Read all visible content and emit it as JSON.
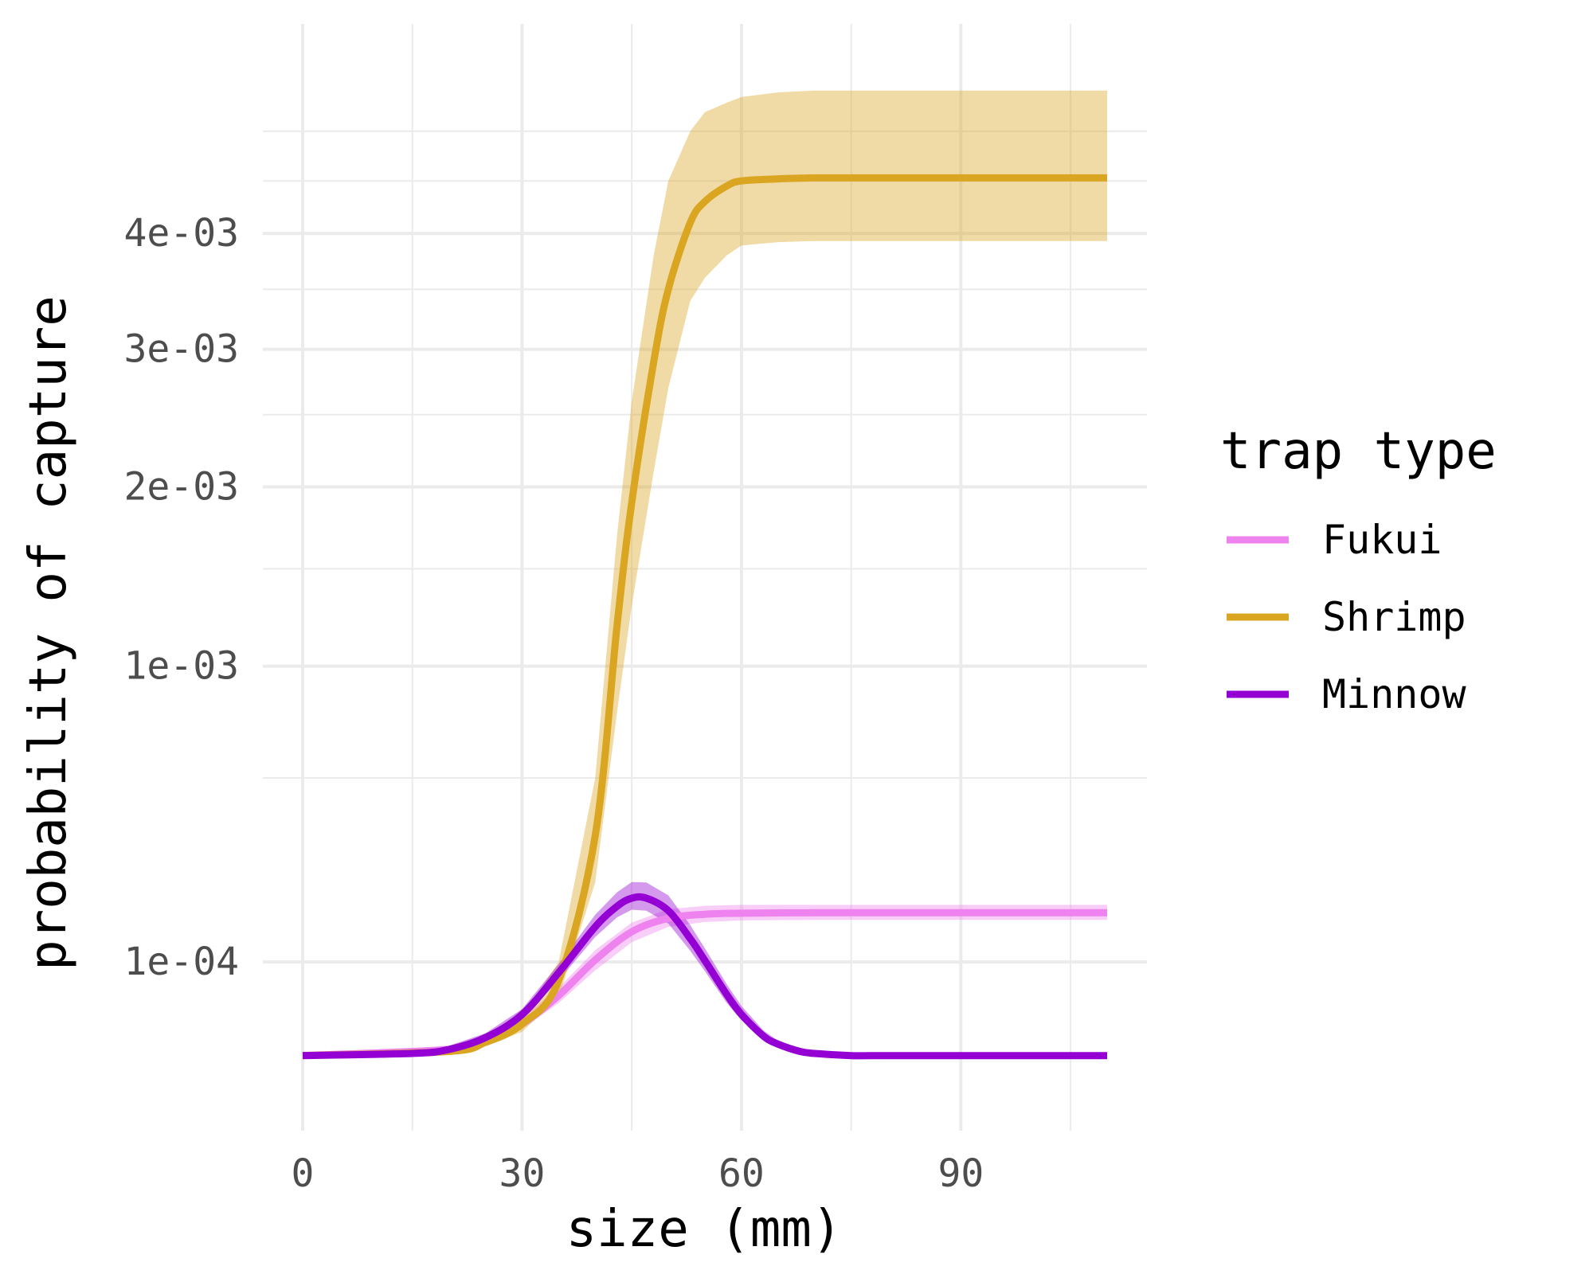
{
  "chart_data": {
    "type": "line",
    "xlabel": "size (mm)",
    "ylabel": "probability of capture",
    "y_scale": "sqrt",
    "xlim": [
      0,
      110
    ],
    "ylim": [
      0,
      0.0059
    ],
    "x_ticks": [
      0,
      30,
      60,
      90
    ],
    "x_tick_labels": [
      "0",
      "30",
      "60",
      "90"
    ],
    "y_ticks": [
      0.0001,
      0.001,
      0.002,
      0.003,
      0.004
    ],
    "y_tick_labels": [
      "1e-04",
      "1e-03",
      "2e-03",
      "3e-03",
      "4e-03"
    ],
    "grid": true,
    "legend": {
      "title": "trap type",
      "position": "right"
    },
    "series": [
      {
        "name": "Fukui",
        "color": "#ee82ee",
        "x": [
          0,
          20,
          25,
          30,
          35,
          40,
          45,
          50,
          55,
          60,
          70,
          80,
          90,
          100,
          110
        ],
        "y": [
          1e-05,
          1.3e-05,
          1.8e-05,
          3e-05,
          5.7e-05,
          0.000103,
          0.000149,
          0.000174,
          0.000182,
          0.000184,
          0.000185,
          0.000185,
          0.000185,
          0.000185,
          0.000185
        ],
        "lower": [
          1e-05,
          1.2e-05,
          1.6e-05,
          2.6e-05,
          4.9e-05,
          8.8e-05,
          0.000131,
          0.000158,
          0.000167,
          0.00017,
          0.000171,
          0.000171,
          0.000171,
          0.000171,
          0.000171
        ],
        "upper": [
          1e-05,
          1.5e-05,
          2.1e-05,
          3.5e-05,
          6.6e-05,
          0.000118,
          0.000166,
          0.000192,
          0.000199,
          0.000201,
          0.000201,
          0.000201,
          0.000201,
          0.000201,
          0.000201
        ]
      },
      {
        "name": "Shrimp",
        "color": "#daa520",
        "x": [
          0,
          20,
          25,
          30,
          35,
          40,
          43,
          45,
          48,
          50,
          53,
          55,
          58,
          60,
          65,
          70,
          80,
          90,
          100,
          110
        ],
        "y": [
          1e-05,
          1.2e-05,
          1.7e-05,
          3e-05,
          7.5e-05,
          0.00037,
          0.0012,
          0.0019,
          0.0029,
          0.0035,
          0.0041,
          0.0043,
          0.00445,
          0.0045,
          0.00452,
          0.00453,
          0.00453,
          0.00453,
          0.00453,
          0.00453
        ],
        "lower": [
          1e-05,
          1.1e-05,
          1.5e-05,
          2.4e-05,
          5.5e-05,
          0.00025,
          0.0008,
          0.0013,
          0.0021,
          0.0027,
          0.0034,
          0.0036,
          0.0038,
          0.00389,
          0.00392,
          0.00393,
          0.00393,
          0.00393,
          0.00393,
          0.00393
        ],
        "upper": [
          1e-05,
          1.4e-05,
          2e-05,
          3.7e-05,
          0.0001,
          0.00055,
          0.0017,
          0.0026,
          0.0038,
          0.0045,
          0.005,
          0.0052,
          0.0053,
          0.00536,
          0.00541,
          0.00543,
          0.00543,
          0.00543,
          0.00543,
          0.00543
        ]
      },
      {
        "name": "Minnow",
        "color": "#9400d3",
        "x": [
          0,
          15,
          20,
          25,
          30,
          35,
          40,
          43,
          45,
          47,
          50,
          53,
          55,
          58,
          60,
          63,
          65,
          68,
          70,
          75,
          80,
          90,
          100,
          110
        ],
        "y": [
          1e-05,
          1.1e-05,
          1.3e-05,
          2e-05,
          3.8e-05,
          8.5e-05,
          0.000158,
          0.000198,
          0.000215,
          0.000215,
          0.000189,
          0.000137,
          0.000102,
          5.8e-05,
          3.8e-05,
          2.1e-05,
          1.6e-05,
          1.2e-05,
          1.1e-05,
          1e-05,
          1e-05,
          1e-05,
          1e-05,
          1e-05
        ],
        "lower": [
          1e-05,
          1.1e-05,
          1.2e-05,
          1.8e-05,
          3.4e-05,
          7.5e-05,
          0.00014,
          0.000176,
          0.000191,
          0.000189,
          0.000164,
          0.000117,
          8.7e-05,
          4.9e-05,
          3.3e-05,
          1.9e-05,
          1.5e-05,
          1.1e-05,
          1e-05,
          1e-05,
          1e-05,
          1e-05,
          1e-05,
          1e-05
        ],
        "upper": [
          1e-05,
          1.1e-05,
          1.5e-05,
          2.3e-05,
          4.3e-05,
          9.7e-05,
          0.000181,
          0.000228,
          0.000251,
          0.00025,
          0.000221,
          0.000161,
          0.000121,
          7e-05,
          4.6e-05,
          2.5e-05,
          1.8e-05,
          1.3e-05,
          1.1e-05,
          1e-05,
          1e-05,
          1e-05,
          1e-05,
          1e-05
        ]
      }
    ]
  }
}
